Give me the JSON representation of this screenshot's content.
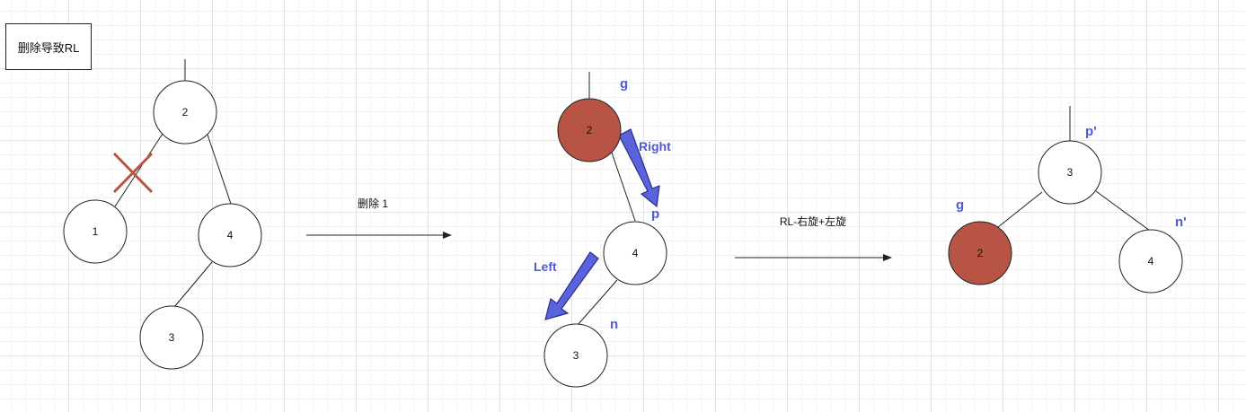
{
  "title": "删除导致RL",
  "colors": {
    "highlight_fill": "#b85446",
    "accent_blue": "#5059d8",
    "cross": "#b85446",
    "stroke": "#222222"
  },
  "tree1": {
    "nodes": {
      "n2": "2",
      "n1": "1",
      "n4": "4",
      "n3": "3"
    }
  },
  "step1": {
    "label": "删除 1"
  },
  "tree2": {
    "nodes": {
      "n2": "2",
      "n4": "4",
      "n3": "3"
    },
    "labels": {
      "g": "g",
      "p": "p",
      "n": "n",
      "right": "Right",
      "left": "Left"
    }
  },
  "step2": {
    "label": "RL-右旋+左旋"
  },
  "tree3": {
    "nodes": {
      "n3": "3",
      "n2": "2",
      "n4": "4"
    },
    "labels": {
      "p_prime": "p'",
      "g": "g",
      "n_prime": "n'"
    }
  }
}
